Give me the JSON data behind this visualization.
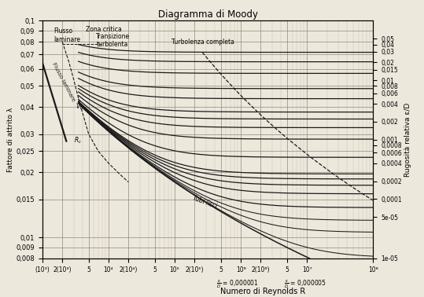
{
  "title": "Diagramma di Moody",
  "xlabel": "Numero di Reynolds R",
  "ylabel_left": "Fattore di attrito λ",
  "ylabel_right": "Rugosità relativa ε/D",
  "xlim": [
    1000,
    100000000.0
  ],
  "ylim": [
    0.008,
    0.1
  ],
  "relative_roughness": [
    0.05,
    0.04,
    0.03,
    0.02,
    0.015,
    0.01,
    0.008,
    0.006,
    0.004,
    0.002,
    0.001,
    0.0008,
    0.0006,
    0.0004,
    0.0002,
    0.0001,
    5e-05,
    1e-05
  ],
  "right_axis_ticks": [
    0.05,
    0.04,
    0.03,
    0.02,
    0.015,
    0.01,
    0.008,
    0.006,
    0.004,
    0.002,
    0.001,
    0.0008,
    0.0006,
    0.0004,
    0.0002,
    0.0001,
    5e-05,
    1e-05
  ],
  "left_axis_ticks": [
    0.008,
    0.009,
    0.01,
    0.015,
    0.02,
    0.025,
    0.03,
    0.04,
    0.05,
    0.06,
    0.07,
    0.08,
    0.09,
    0.1
  ],
  "x_ticks": [
    1000,
    2000,
    5000,
    10000,
    20000,
    50000,
    100000,
    200000,
    500000,
    1000000,
    2000000,
    5000000,
    10000000,
    100000000
  ],
  "x_labels": [
    "(10³)",
    "2(10³)",
    "5",
    "10⁴",
    "2(10⁴)",
    "5",
    "10⁵",
    "2(10⁵)",
    "5",
    "10⁶",
    "2(10⁶)",
    "5",
    "10⁷",
    "10⁸"
  ],
  "bg_color": "#ede8dc",
  "line_color": "#1a1a1a"
}
